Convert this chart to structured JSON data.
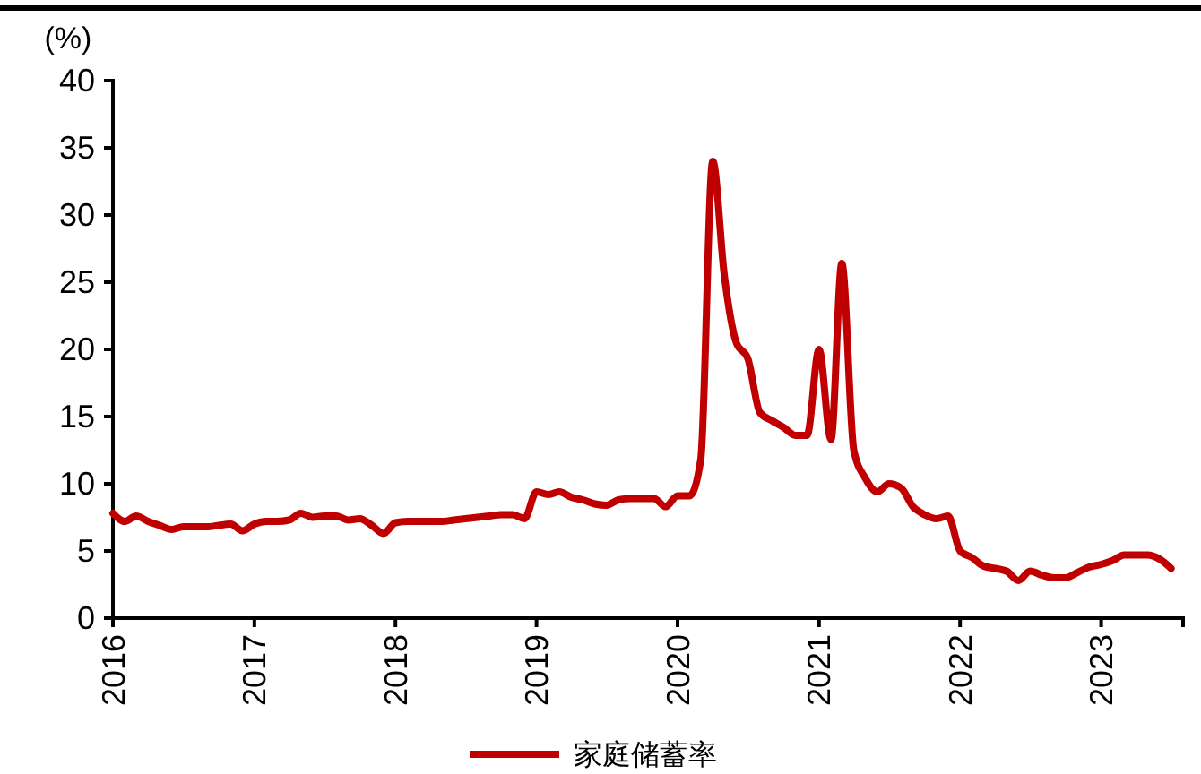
{
  "chart_data": {
    "type": "line",
    "ylabel": "(%)",
    "x": [
      "2016-01",
      "2016-02",
      "2016-03",
      "2016-04",
      "2016-05",
      "2016-06",
      "2016-07",
      "2016-08",
      "2016-09",
      "2016-10",
      "2016-11",
      "2016-12",
      "2017-01",
      "2017-02",
      "2017-03",
      "2017-04",
      "2017-05",
      "2017-06",
      "2017-07",
      "2017-08",
      "2017-09",
      "2017-10",
      "2017-11",
      "2017-12",
      "2018-01",
      "2018-02",
      "2018-03",
      "2018-04",
      "2018-05",
      "2018-06",
      "2018-07",
      "2018-08",
      "2018-09",
      "2018-10",
      "2018-11",
      "2018-12",
      "2019-01",
      "2019-02",
      "2019-03",
      "2019-04",
      "2019-05",
      "2019-06",
      "2019-07",
      "2019-08",
      "2019-09",
      "2019-10",
      "2019-11",
      "2019-12",
      "2020-01",
      "2020-02",
      "2020-03",
      "2020-04",
      "2020-05",
      "2020-06",
      "2020-07",
      "2020-08",
      "2020-09",
      "2020-10",
      "2020-11",
      "2020-12",
      "2021-01",
      "2021-02",
      "2021-03",
      "2021-04",
      "2021-05",
      "2021-06",
      "2021-07",
      "2021-08",
      "2021-09",
      "2021-10",
      "2021-11",
      "2021-12",
      "2022-01",
      "2022-02",
      "2022-03",
      "2022-04",
      "2022-05",
      "2022-06",
      "2022-07",
      "2022-08",
      "2022-09",
      "2022-10",
      "2022-11",
      "2022-12",
      "2023-01",
      "2023-02",
      "2023-03",
      "2023-04",
      "2023-05",
      "2023-06",
      "2023-07"
    ],
    "series": [
      {
        "name": "家庭储蓄率",
        "color": "#c00000",
        "values": [
          7.8,
          7.2,
          7.6,
          7.2,
          6.9,
          6.6,
          6.8,
          6.8,
          6.8,
          6.9,
          7.0,
          6.5,
          7.0,
          7.2,
          7.2,
          7.3,
          7.8,
          7.5,
          7.6,
          7.6,
          7.3,
          7.4,
          6.9,
          6.3,
          7.1,
          7.2,
          7.2,
          7.2,
          7.2,
          7.3,
          7.4,
          7.5,
          7.6,
          7.7,
          7.7,
          7.4,
          9.4,
          9.2,
          9.4,
          9.0,
          8.8,
          8.5,
          8.4,
          8.8,
          8.9,
          8.9,
          8.9,
          8.3,
          9.1,
          9.1,
          11.8,
          34.0,
          25.5,
          20.5,
          19.3,
          15.3,
          14.7,
          14.2,
          13.6,
          13.6,
          20.0,
          13.3,
          26.4,
          12.5,
          10.4,
          9.4,
          10.0,
          9.7,
          8.3,
          7.7,
          7.4,
          7.6,
          5.0,
          4.5,
          3.9,
          3.7,
          3.5,
          2.8,
          3.5,
          3.2,
          3.0,
          3.0,
          3.4,
          3.8,
          4.0,
          4.3,
          4.7,
          4.7,
          4.7,
          4.4,
          3.7
        ]
      }
    ],
    "xlim": [
      "2016-01",
      "2023-08"
    ],
    "xticks": [
      "2016",
      "2017",
      "2018",
      "2019",
      "2020",
      "2021",
      "2022",
      "2023"
    ],
    "ylim": [
      0,
      40
    ],
    "yticks": [
      0,
      5,
      10,
      15,
      20,
      25,
      30,
      35,
      40
    ],
    "grid": false,
    "legend": "bottom",
    "marker": "none",
    "line_style": "solid"
  }
}
